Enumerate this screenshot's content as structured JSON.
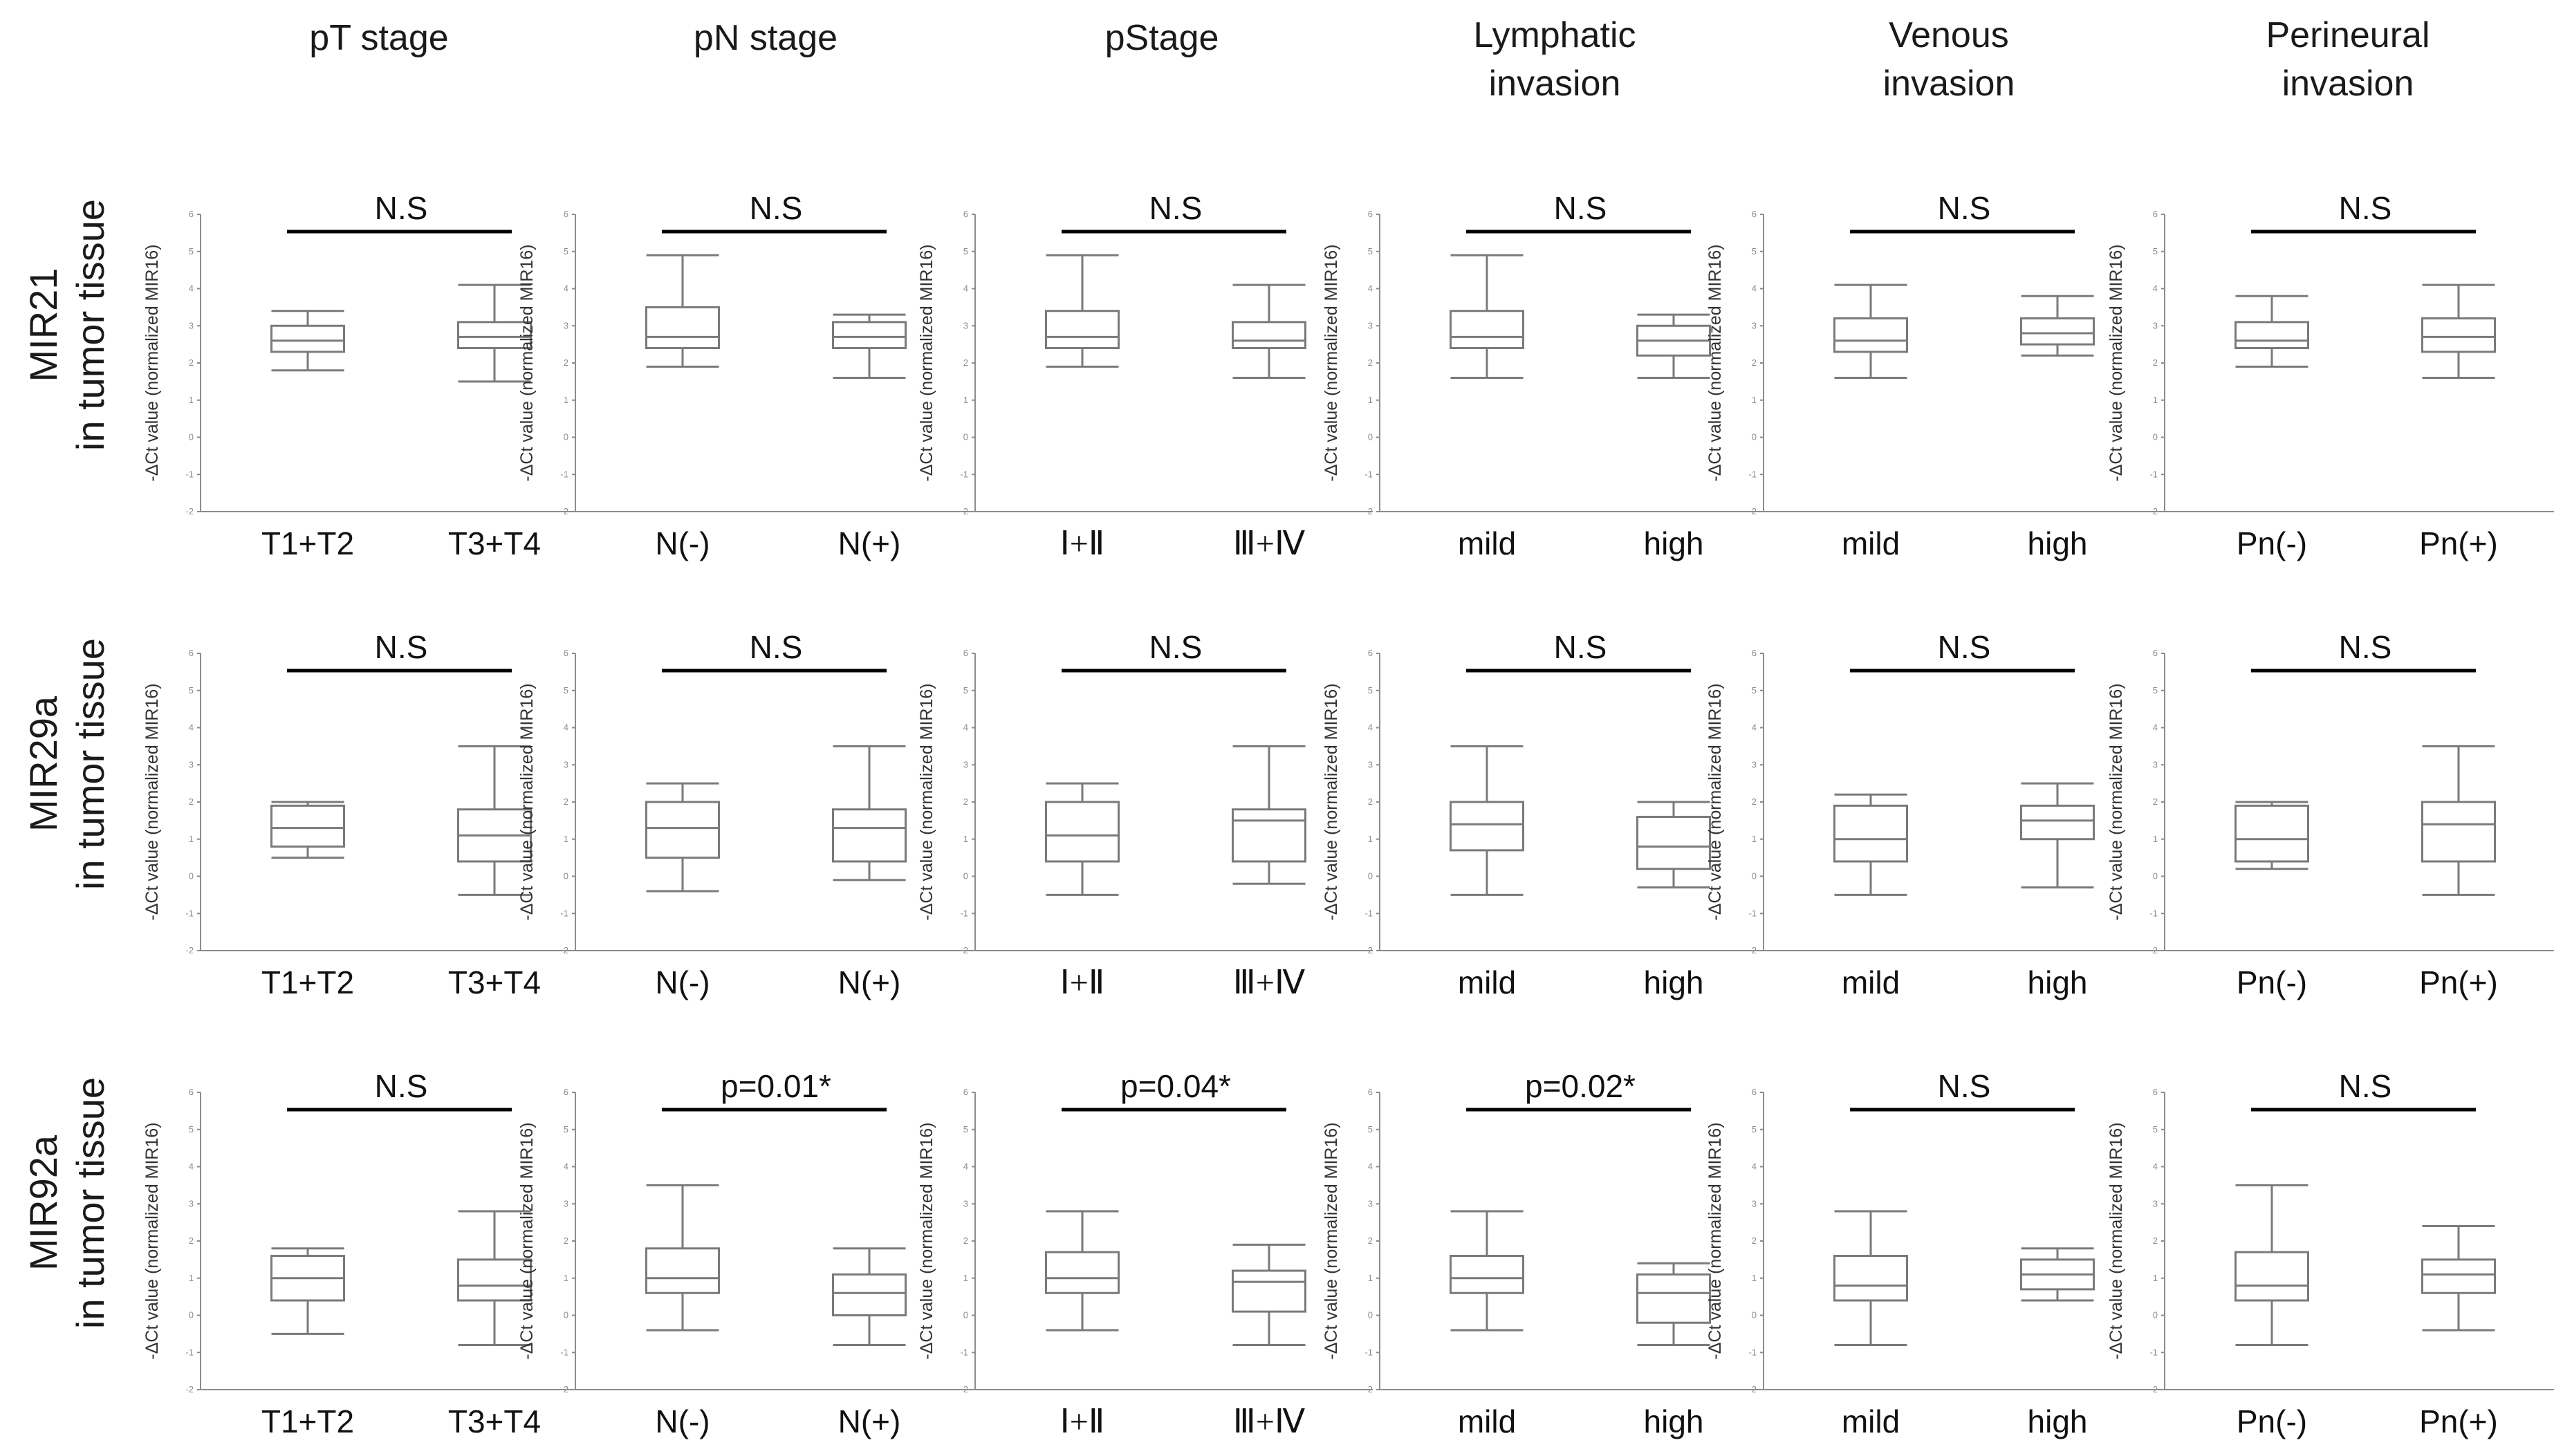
{
  "column_headers": [
    [
      "pT stage"
    ],
    [
      "pN stage"
    ],
    [
      "pStage"
    ],
    [
      "Lymphatic",
      "invasion"
    ],
    [
      "Venous",
      "invasion"
    ],
    [
      "Perineural",
      "invasion"
    ]
  ],
  "row_headers": [
    [
      "MIR21",
      "in tumor tissue"
    ],
    [
      "MIR29a",
      "in tumor tissue"
    ],
    [
      "MIR92a",
      "in tumor tissue"
    ]
  ],
  "y_axis_label": "-ΔCt value (normalized MIR16)",
  "y_ticks": [
    "6",
    "5",
    "4",
    "3",
    "2",
    "1",
    "0",
    "-1",
    "-2"
  ],
  "chart_data": {
    "type": "boxplot",
    "ylim": [
      -2,
      6
    ],
    "grid": false,
    "panels": [
      [
        {
          "categories": [
            "T1+T2",
            "T3+T4"
          ],
          "significance": "N.S",
          "boxes": [
            {
              "min": 1.8,
              "q1": 2.3,
              "median": 2.6,
              "q3": 3.0,
              "max": 3.4
            },
            {
              "min": 1.5,
              "q1": 2.4,
              "median": 2.7,
              "q3": 3.1,
              "max": 4.1
            }
          ]
        },
        {
          "categories": [
            "N(-)",
            "N(+)"
          ],
          "significance": "N.S",
          "boxes": [
            {
              "min": 1.9,
              "q1": 2.4,
              "median": 2.7,
              "q3": 3.5,
              "max": 4.9
            },
            {
              "min": 1.6,
              "q1": 2.4,
              "median": 2.7,
              "q3": 3.1,
              "max": 3.3
            }
          ]
        },
        {
          "categories": [
            "Ⅰ+Ⅱ",
            "Ⅲ+Ⅳ"
          ],
          "significance": "N.S",
          "boxes": [
            {
              "min": 1.9,
              "q1": 2.4,
              "median": 2.7,
              "q3": 3.4,
              "max": 4.9
            },
            {
              "min": 1.6,
              "q1": 2.4,
              "median": 2.6,
              "q3": 3.1,
              "max": 4.1
            }
          ]
        },
        {
          "categories": [
            "mild",
            "high"
          ],
          "significance": "N.S",
          "boxes": [
            {
              "min": 1.6,
              "q1": 2.4,
              "median": 2.7,
              "q3": 3.4,
              "max": 4.9
            },
            {
              "min": 1.6,
              "q1": 2.2,
              "median": 2.6,
              "q3": 3.0,
              "max": 3.3
            }
          ]
        },
        {
          "categories": [
            "mild",
            "high"
          ],
          "significance": "N.S",
          "boxes": [
            {
              "min": 1.6,
              "q1": 2.3,
              "median": 2.6,
              "q3": 3.2,
              "max": 4.1
            },
            {
              "min": 2.2,
              "q1": 2.5,
              "median": 2.8,
              "q3": 3.2,
              "max": 3.8
            }
          ]
        },
        {
          "categories": [
            "Pn(-)",
            "Pn(+)"
          ],
          "significance": "N.S",
          "boxes": [
            {
              "min": 1.9,
              "q1": 2.4,
              "median": 2.6,
              "q3": 3.1,
              "max": 3.8
            },
            {
              "min": 1.6,
              "q1": 2.3,
              "median": 2.7,
              "q3": 3.2,
              "max": 4.1
            }
          ]
        }
      ],
      [
        {
          "categories": [
            "T1+T2",
            "T3+T4"
          ],
          "significance": "N.S",
          "boxes": [
            {
              "min": 0.5,
              "q1": 0.8,
              "median": 1.3,
              "q3": 1.9,
              "max": 2.0
            },
            {
              "min": -0.5,
              "q1": 0.4,
              "median": 1.1,
              "q3": 1.8,
              "max": 3.5
            }
          ]
        },
        {
          "categories": [
            "N(-)",
            "N(+)"
          ],
          "significance": "N.S",
          "boxes": [
            {
              "min": -0.4,
              "q1": 0.5,
              "median": 1.3,
              "q3": 2.0,
              "max": 2.5
            },
            {
              "min": -0.1,
              "q1": 0.4,
              "median": 1.3,
              "q3": 1.8,
              "max": 3.5
            }
          ]
        },
        {
          "categories": [
            "Ⅰ+Ⅱ",
            "Ⅲ+Ⅳ"
          ],
          "significance": "N.S",
          "boxes": [
            {
              "min": -0.5,
              "q1": 0.4,
              "median": 1.1,
              "q3": 2.0,
              "max": 2.5
            },
            {
              "min": -0.2,
              "q1": 0.4,
              "median": 1.5,
              "q3": 1.8,
              "max": 3.5
            }
          ]
        },
        {
          "categories": [
            "mild",
            "high"
          ],
          "significance": "N.S",
          "boxes": [
            {
              "min": -0.5,
              "q1": 0.7,
              "median": 1.4,
              "q3": 2.0,
              "max": 3.5
            },
            {
              "min": -0.3,
              "q1": 0.2,
              "median": 0.8,
              "q3": 1.6,
              "max": 2.0
            }
          ]
        },
        {
          "categories": [
            "mild",
            "high"
          ],
          "significance": "N.S",
          "boxes": [
            {
              "min": -0.5,
              "q1": 0.4,
              "median": 1.0,
              "q3": 1.9,
              "max": 2.2
            },
            {
              "min": -0.3,
              "q1": 1.0,
              "median": 1.5,
              "q3": 1.9,
              "max": 2.5
            }
          ]
        },
        {
          "categories": [
            "Pn(-)",
            "Pn(+)"
          ],
          "significance": "N.S",
          "boxes": [
            {
              "min": 0.2,
              "q1": 0.4,
              "median": 1.0,
              "q3": 1.9,
              "max": 2.0
            },
            {
              "min": -0.5,
              "q1": 0.4,
              "median": 1.4,
              "q3": 2.0,
              "max": 3.5
            }
          ]
        }
      ],
      [
        {
          "categories": [
            "T1+T2",
            "T3+T4"
          ],
          "significance": "N.S",
          "boxes": [
            {
              "min": -0.5,
              "q1": 0.4,
              "median": 1.0,
              "q3": 1.6,
              "max": 1.8
            },
            {
              "min": -0.8,
              "q1": 0.4,
              "median": 0.8,
              "q3": 1.5,
              "max": 2.8
            }
          ]
        },
        {
          "categories": [
            "N(-)",
            "N(+)"
          ],
          "significance": "p=0.01*",
          "boxes": [
            {
              "min": -0.4,
              "q1": 0.6,
              "median": 1.0,
              "q3": 1.8,
              "max": 3.5
            },
            {
              "min": -0.8,
              "q1": 0.0,
              "median": 0.6,
              "q3": 1.1,
              "max": 1.8
            }
          ]
        },
        {
          "categories": [
            "Ⅰ+Ⅱ",
            "Ⅲ+Ⅳ"
          ],
          "significance": "p=0.04*",
          "boxes": [
            {
              "min": -0.4,
              "q1": 0.6,
              "median": 1.0,
              "q3": 1.7,
              "max": 2.8
            },
            {
              "min": -0.8,
              "q1": 0.1,
              "median": 0.9,
              "q3": 1.2,
              "max": 1.9
            }
          ]
        },
        {
          "categories": [
            "mild",
            "high"
          ],
          "significance": "p=0.02*",
          "boxes": [
            {
              "min": -0.4,
              "q1": 0.6,
              "median": 1.0,
              "q3": 1.6,
              "max": 2.8
            },
            {
              "min": -0.8,
              "q1": -0.2,
              "median": 0.6,
              "q3": 1.1,
              "max": 1.4
            }
          ]
        },
        {
          "categories": [
            "mild",
            "high"
          ],
          "significance": "N.S",
          "boxes": [
            {
              "min": -0.8,
              "q1": 0.4,
              "median": 0.8,
              "q3": 1.6,
              "max": 2.8
            },
            {
              "min": 0.4,
              "q1": 0.7,
              "median": 1.1,
              "q3": 1.5,
              "max": 1.8
            }
          ]
        },
        {
          "categories": [
            "Pn(-)",
            "Pn(+)"
          ],
          "significance": "N.S",
          "boxes": [
            {
              "min": -0.8,
              "q1": 0.4,
              "median": 0.8,
              "q3": 1.7,
              "max": 3.5
            },
            {
              "min": -0.4,
              "q1": 0.6,
              "median": 1.1,
              "q3": 1.5,
              "max": 2.4
            }
          ]
        }
      ]
    ]
  }
}
